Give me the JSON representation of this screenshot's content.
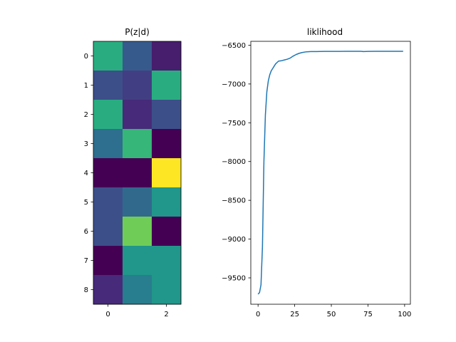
{
  "chart_data": [
    {
      "type": "heatmap",
      "title": "P(z|d)",
      "colormap": "viridis",
      "rows": [
        "0",
        "1",
        "2",
        "3",
        "4",
        "5",
        "6",
        "7",
        "8"
      ],
      "columns": [
        "0",
        "1",
        "2"
      ],
      "xticks": [
        "0",
        "2"
      ],
      "xtick_columns": [
        0,
        2
      ],
      "values": [
        [
          0.62,
          0.28,
          0.08
        ],
        [
          0.24,
          0.18,
          0.62
        ],
        [
          0.62,
          0.12,
          0.24
        ],
        [
          0.36,
          0.66,
          0.0
        ],
        [
          0.0,
          0.0,
          1.0
        ],
        [
          0.24,
          0.34,
          0.52
        ],
        [
          0.24,
          0.78,
          0.0
        ],
        [
          0.0,
          0.52,
          0.52
        ],
        [
          0.12,
          0.42,
          0.52
        ]
      ]
    },
    {
      "type": "line",
      "title": "liklihood",
      "xlabel": "",
      "ylabel": "",
      "xlim": [
        -4.95,
        103.95
      ],
      "ylim": [
        -9840,
        -6450
      ],
      "xticks": [
        0,
        25,
        50,
        75,
        100
      ],
      "yticks": [
        -9500,
        -9000,
        -8500,
        -8000,
        -7500,
        -7000,
        -6500
      ],
      "xtick_labels": [
        "0",
        "25",
        "50",
        "75",
        "100"
      ],
      "ytick_labels": [
        "−9500",
        "−9000",
        "−8500",
        "−8000",
        "−7500",
        "−7000",
        "−6500"
      ],
      "color": "#1f77b4",
      "grid": false,
      "x": [
        0,
        1,
        2,
        3,
        4,
        5,
        6,
        7,
        8,
        9,
        10,
        11,
        12,
        14,
        16,
        18,
        20,
        22,
        24,
        26,
        28,
        30,
        33,
        36,
        40,
        45,
        50,
        55,
        60,
        65,
        70,
        72,
        75,
        80,
        85,
        90,
        95,
        99
      ],
      "y": [
        -9710,
        -9690,
        -9590,
        -9100,
        -8000,
        -7400,
        -7100,
        -6960,
        -6880,
        -6830,
        -6800,
        -6770,
        -6740,
        -6705,
        -6700,
        -6690,
        -6680,
        -6665,
        -6640,
        -6620,
        -6605,
        -6595,
        -6585,
        -6582,
        -6582,
        -6580,
        -6580,
        -6580,
        -6579,
        -6579,
        -6579,
        -6582,
        -6580,
        -6579,
        -6579,
        -6579,
        -6579,
        -6579
      ]
    }
  ]
}
